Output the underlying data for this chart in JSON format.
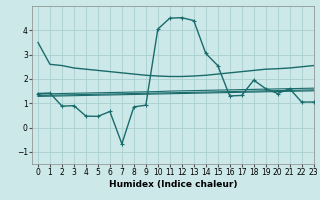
{
  "title": "",
  "xlabel": "Humidex (Indice chaleur)",
  "bg_color": "#cce8e8",
  "grid_color": "#aad0d0",
  "line_color": "#1a6b6b",
  "xlim": [
    -0.5,
    23
  ],
  "ylim": [
    -1.5,
    5.0
  ],
  "yticks": [
    -1,
    0,
    1,
    2,
    3,
    4
  ],
  "xticks": [
    0,
    1,
    2,
    3,
    4,
    5,
    6,
    7,
    8,
    9,
    10,
    11,
    12,
    13,
    14,
    15,
    16,
    17,
    18,
    19,
    20,
    21,
    22,
    23
  ],
  "line1_x": [
    0,
    1,
    2,
    3,
    4,
    5,
    6,
    7,
    8,
    9,
    10,
    11,
    12,
    13,
    14,
    15,
    16,
    17,
    18,
    19,
    20,
    21,
    22,
    23
  ],
  "line1_y": [
    3.5,
    2.6,
    2.55,
    2.45,
    2.4,
    2.35,
    2.3,
    2.25,
    2.2,
    2.15,
    2.12,
    2.1,
    2.1,
    2.12,
    2.15,
    2.2,
    2.25,
    2.3,
    2.35,
    2.4,
    2.42,
    2.45,
    2.5,
    2.55
  ],
  "line2_x": [
    0,
    1,
    2,
    3,
    4,
    5,
    6,
    7,
    8,
    9,
    10,
    11,
    12,
    13,
    14,
    15,
    16,
    17,
    18,
    19,
    20,
    21,
    22,
    23
  ],
  "line2_y": [
    1.4,
    1.42,
    0.88,
    0.9,
    0.47,
    0.46,
    0.66,
    -0.67,
    0.85,
    0.92,
    4.05,
    4.5,
    4.52,
    4.4,
    3.05,
    2.55,
    1.3,
    1.32,
    1.95,
    1.6,
    1.4,
    1.6,
    1.05,
    1.05
  ],
  "line3_x": [
    0,
    1,
    2,
    3,
    4,
    5,
    6,
    7,
    8,
    9,
    10,
    11,
    12,
    13,
    14,
    15,
    16,
    17,
    18,
    19,
    20,
    21,
    22,
    23
  ],
  "line3_y": [
    1.38,
    1.39,
    1.4,
    1.41,
    1.42,
    1.43,
    1.44,
    1.45,
    1.46,
    1.47,
    1.48,
    1.5,
    1.51,
    1.52,
    1.53,
    1.54,
    1.55,
    1.56,
    1.57,
    1.58,
    1.59,
    1.6,
    1.61,
    1.62
  ],
  "line4_x": [
    0,
    1,
    2,
    3,
    4,
    5,
    6,
    7,
    8,
    9,
    10,
    11,
    12,
    13,
    14,
    15,
    16,
    17,
    18,
    19,
    20,
    21,
    22,
    23
  ],
  "line4_y": [
    1.32,
    1.33,
    1.34,
    1.35,
    1.36,
    1.37,
    1.38,
    1.39,
    1.4,
    1.41,
    1.42,
    1.43,
    1.44,
    1.45,
    1.46,
    1.47,
    1.48,
    1.49,
    1.5,
    1.51,
    1.52,
    1.53,
    1.54,
    1.55
  ],
  "line5_x": [
    0,
    1,
    2,
    3,
    4,
    5,
    6,
    7,
    8,
    9,
    10,
    11,
    12,
    13,
    14,
    15,
    16,
    17,
    18,
    19,
    20,
    21,
    22,
    23
  ],
  "line5_y": [
    1.28,
    1.29,
    1.3,
    1.31,
    1.32,
    1.33,
    1.34,
    1.35,
    1.36,
    1.37,
    1.38,
    1.39,
    1.4,
    1.41,
    1.42,
    1.43,
    1.44,
    1.45,
    1.46,
    1.47,
    1.48,
    1.49,
    1.5,
    1.51
  ]
}
